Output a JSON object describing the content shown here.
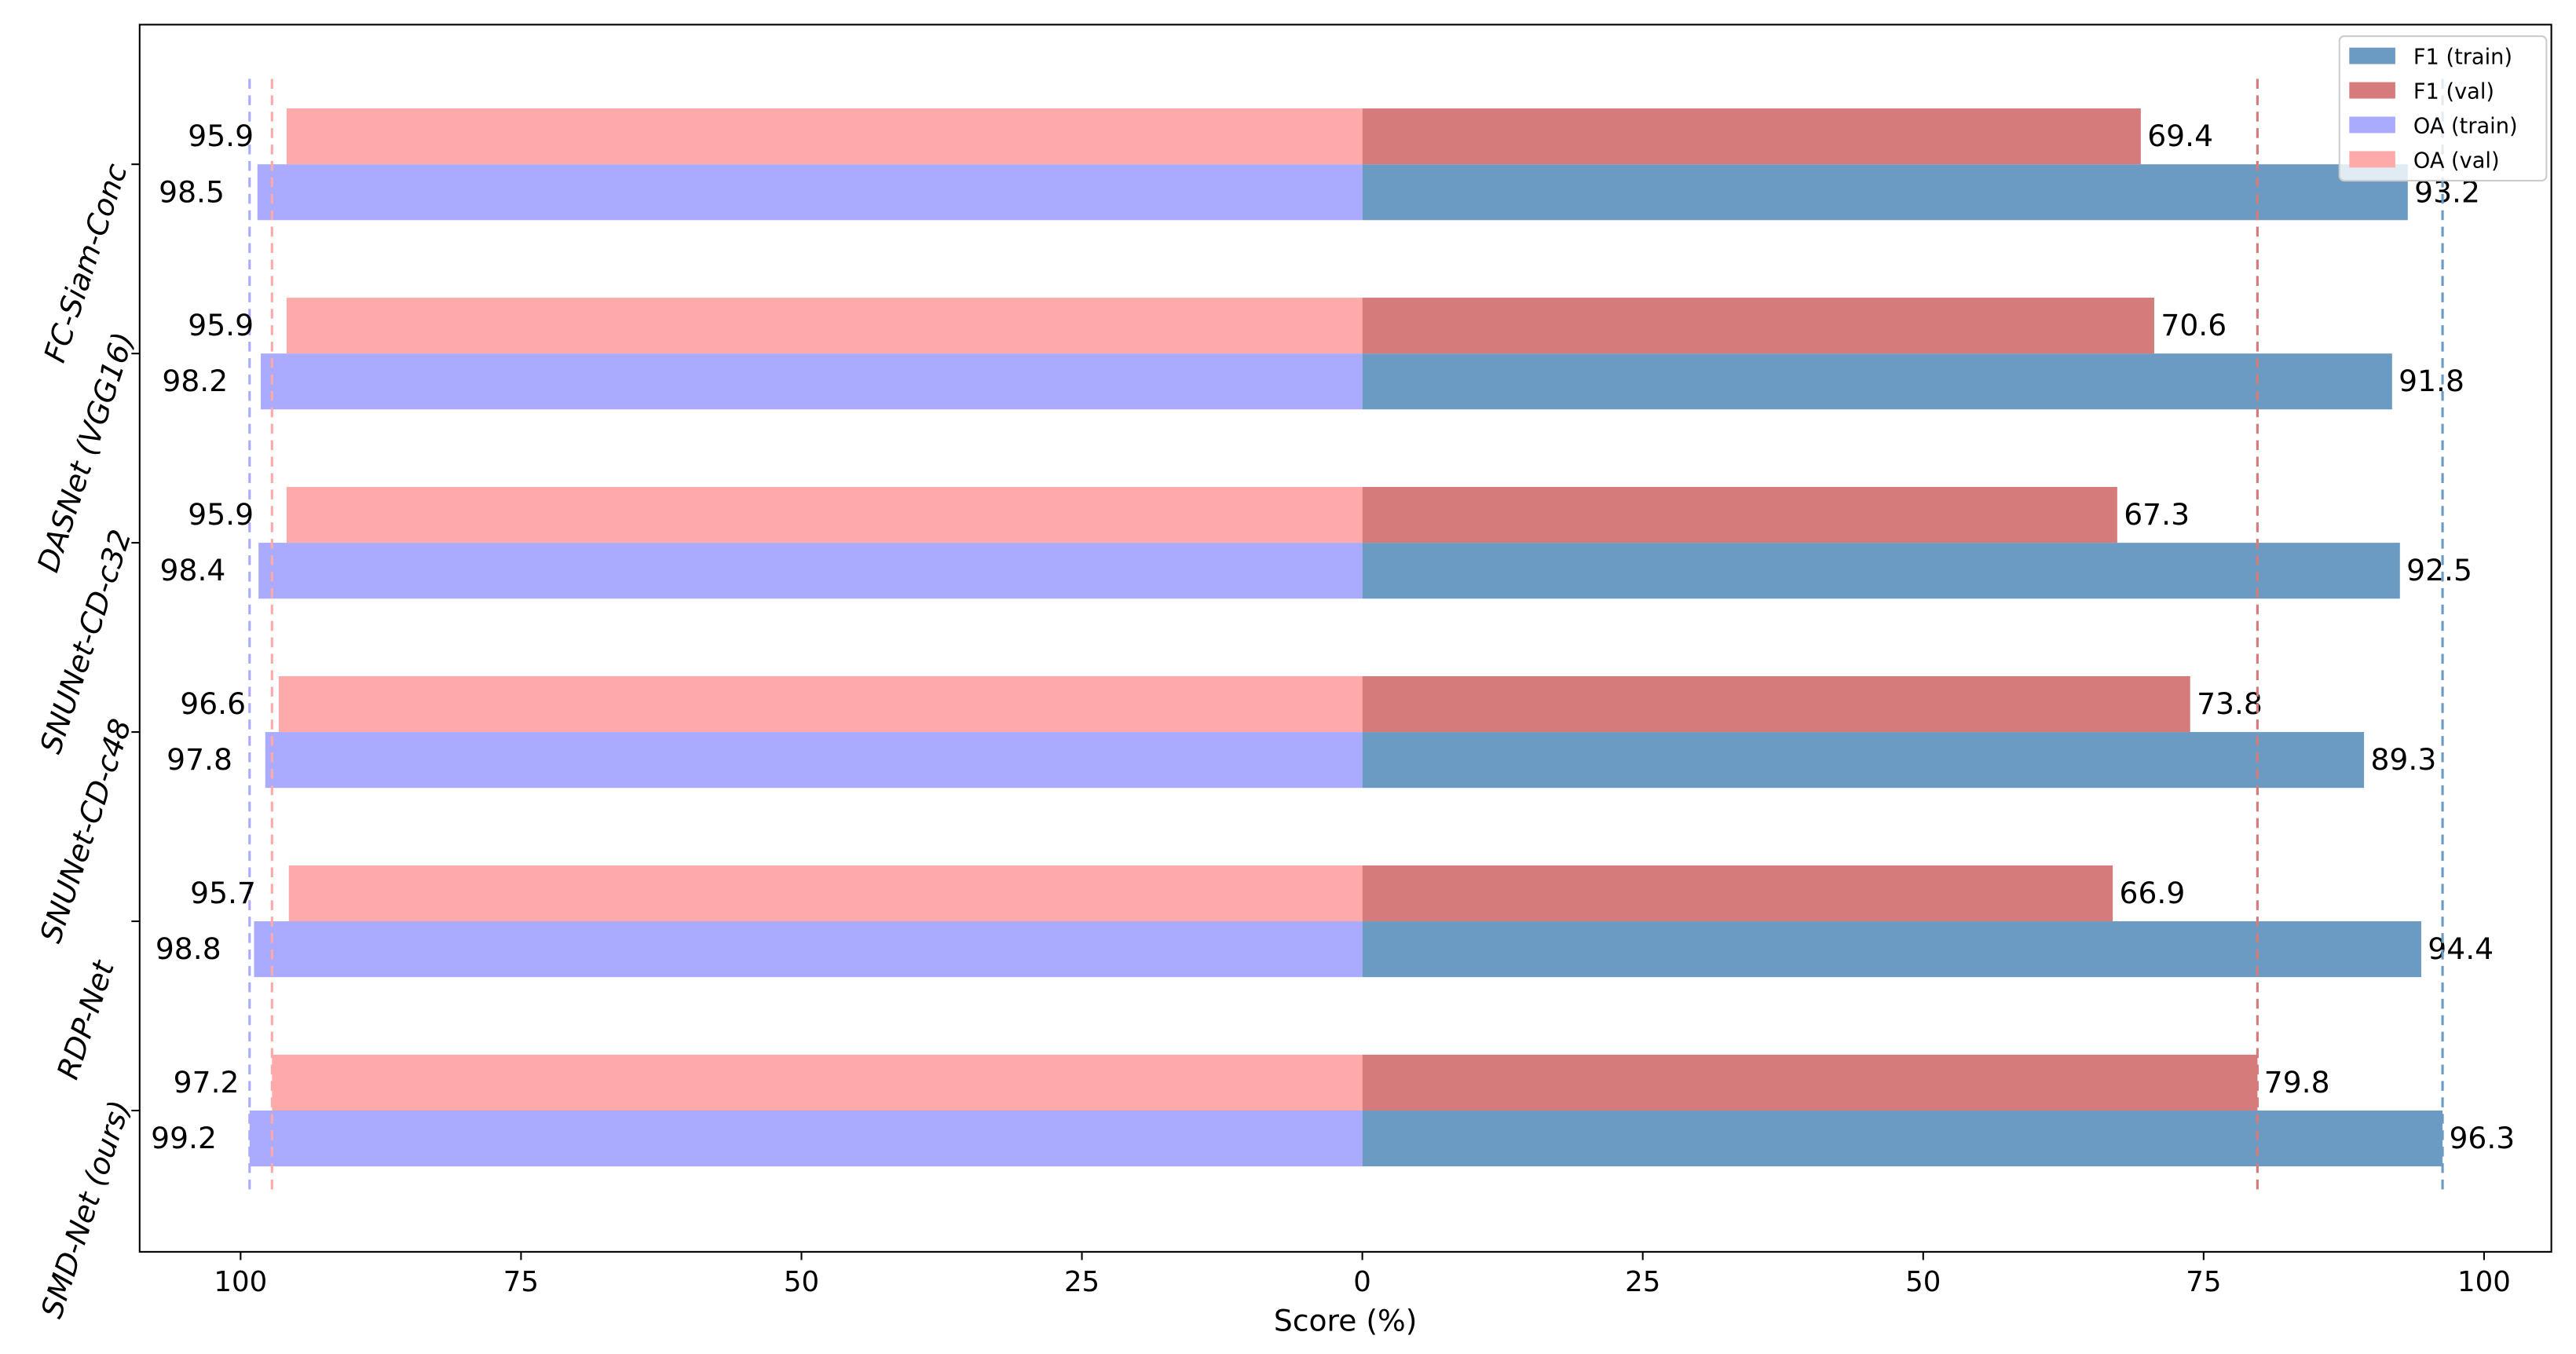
{
  "chart_data": {
    "type": "diverging-bar",
    "xlabel": "Score (%)",
    "categories": [
      "FC-Siam-Conc",
      "DASNet (VGG16)",
      "SNUNet-CD-c32",
      "SNUNet-CD-c48",
      "RDP-Net",
      "SMD-Net (ours)"
    ],
    "series": [
      {
        "name": "F1 (train)",
        "color": "#6b9bc3",
        "side": "right",
        "values": [
          93.2,
          91.8,
          92.5,
          89.3,
          94.4,
          96.3
        ]
      },
      {
        "name": "F1 (val)",
        "color": "#d67b7b",
        "side": "right",
        "values": [
          69.4,
          70.6,
          67.3,
          73.8,
          66.9,
          79.8
        ]
      },
      {
        "name": "OA (train)",
        "color": "#aaaaff",
        "side": "left",
        "values": [
          98.5,
          98.2,
          98.4,
          97.8,
          98.8,
          99.2
        ]
      },
      {
        "name": "OA (val)",
        "color": "#ffaaaa",
        "side": "left",
        "values": [
          95.9,
          95.9,
          95.9,
          96.6,
          95.7,
          97.2
        ]
      }
    ],
    "xlim": [
      -109,
      106
    ],
    "xticks": [
      {
        "value": -100,
        "label": "100"
      },
      {
        "value": -75,
        "label": "75"
      },
      {
        "value": -50,
        "label": "50"
      },
      {
        "value": -25,
        "label": "25"
      },
      0,
      25,
      50,
      75,
      100
    ],
    "legend": "upper right",
    "max_lines": true
  }
}
